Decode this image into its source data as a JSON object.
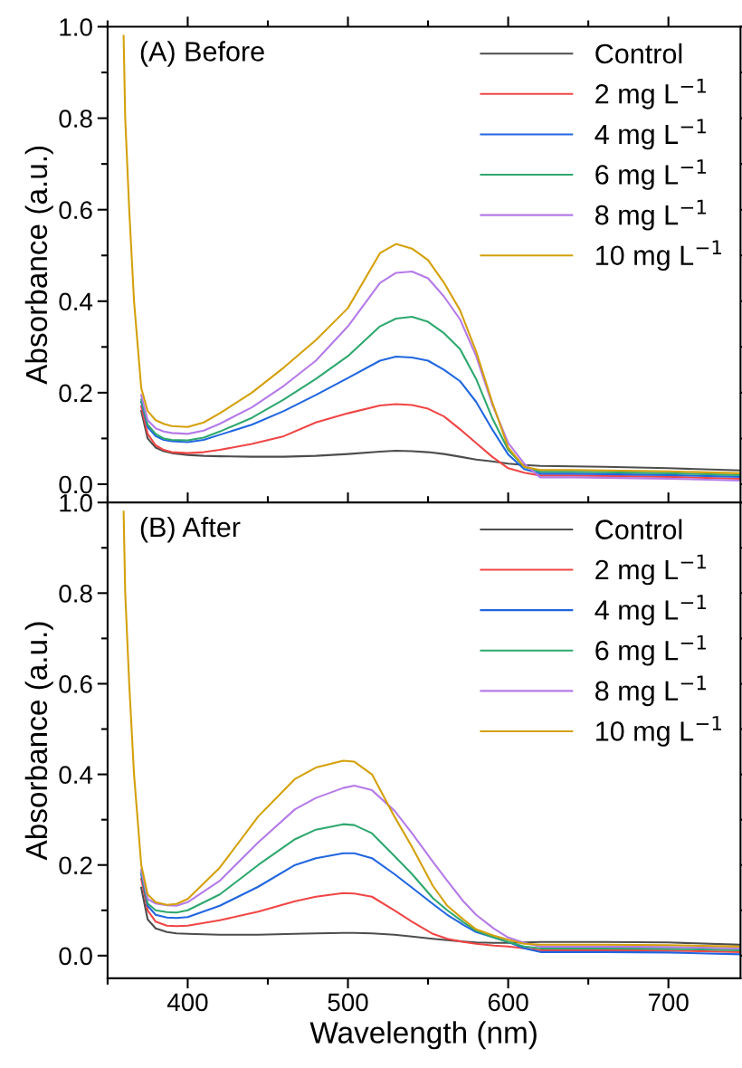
{
  "chart_data": [
    {
      "type": "line",
      "ylabel": "Absorbance (a.u.)",
      "annotations": [
        "(A) Before"
      ],
      "xlim": [
        350,
        745
      ],
      "xticks": [
        400,
        500,
        600,
        700
      ],
      "ylim": [
        -0.04,
        1.0
      ],
      "yticks": [
        {
          "value": 0,
          "label": "0.0"
        },
        {
          "value": 0.2,
          "label": "0.2"
        },
        {
          "value": 0.4,
          "label": "0.4"
        },
        {
          "value": 0.6,
          "label": "0.6"
        },
        {
          "value": 0.8,
          "label": "0.8"
        },
        {
          "value": 1,
          "label": "1.0"
        }
      ],
      "tick_labels": "y",
      "legend": "top right",
      "marker": "none",
      "line_style": "solid",
      "x": [
        360,
        361,
        363.5,
        366.5,
        371,
        375,
        380,
        385,
        390,
        400,
        410,
        420,
        440,
        460,
        480,
        500,
        520,
        530,
        540,
        550,
        560,
        570,
        580,
        590,
        600,
        610,
        620,
        640,
        660,
        700,
        745
      ],
      "series": [
        {
          "name": "Control",
          "color": "#4d4d4d",
          "values": [
            null,
            null,
            null,
            null,
            0.16,
            0.1,
            0.08,
            0.072,
            0.068,
            0.064,
            0.062,
            0.061,
            0.06,
            0.06,
            0.062,
            0.066,
            0.071,
            0.073,
            0.072,
            0.07,
            0.066,
            0.06,
            0.054,
            0.05,
            0.045,
            0.042,
            0.04,
            0.039,
            0.038,
            0.035,
            0.03
          ]
        },
        {
          "name": "2 mg L$^{−1}$",
          "color": "#f04545",
          "values": [
            null,
            null,
            null,
            null,
            0.17,
            0.11,
            0.085,
            0.075,
            0.07,
            0.068,
            0.07,
            0.075,
            0.088,
            0.105,
            0.135,
            0.155,
            0.172,
            0.175,
            0.173,
            0.165,
            0.148,
            0.12,
            0.09,
            0.06,
            0.035,
            0.025,
            0.019,
            0.019,
            0.018,
            0.016,
            0.012
          ]
        },
        {
          "name": "4 mg L$^{−1}$",
          "color": "#2066e0",
          "values": [
            null,
            null,
            null,
            null,
            0.18,
            0.125,
            0.105,
            0.097,
            0.094,
            0.092,
            0.097,
            0.108,
            0.13,
            0.16,
            0.195,
            0.232,
            0.27,
            0.279,
            0.277,
            0.27,
            0.25,
            0.225,
            0.18,
            0.12,
            0.065,
            0.033,
            0.023,
            0.023,
            0.022,
            0.02,
            0.016
          ]
        },
        {
          "name": "6 mg L$^{−1}$",
          "color": "#2ea86e",
          "values": [
            null,
            null,
            null,
            null,
            0.185,
            0.13,
            0.11,
            0.1,
            0.097,
            0.096,
            0.102,
            0.115,
            0.145,
            0.185,
            0.23,
            0.28,
            0.345,
            0.362,
            0.366,
            0.355,
            0.33,
            0.295,
            0.23,
            0.145,
            0.075,
            0.038,
            0.027,
            0.027,
            0.026,
            0.024,
            0.02
          ]
        },
        {
          "name": "8 mg L$^{−1}$",
          "color": "#b57ae8",
          "values": [
            null,
            null,
            null,
            null,
            0.195,
            0.14,
            0.122,
            0.115,
            0.112,
            0.11,
            0.117,
            0.132,
            0.168,
            0.215,
            0.27,
            0.345,
            0.44,
            0.462,
            0.465,
            0.45,
            0.41,
            0.36,
            0.28,
            0.175,
            0.09,
            0.045,
            0.015,
            0.015,
            0.014,
            0.012,
            0.008
          ]
        },
        {
          "name": "10 mg L$^{−1}$",
          "color": "#d4a00a",
          "values": [
            0.98,
            0.8,
            0.6,
            0.4,
            0.21,
            0.16,
            0.14,
            0.132,
            0.127,
            0.125,
            0.135,
            0.155,
            0.2,
            0.255,
            0.315,
            0.385,
            0.505,
            0.525,
            0.515,
            0.49,
            0.44,
            0.38,
            0.29,
            0.18,
            0.08,
            0.038,
            0.031,
            0.031,
            0.03,
            0.028,
            0.024
          ]
        }
      ]
    },
    {
      "type": "line",
      "xlabel": "Wavelength (nm)",
      "ylabel": "Absorbance (a.u.)",
      "annotations": [
        "(B) After"
      ],
      "xlim": [
        350,
        745
      ],
      "xticks": [
        400,
        500,
        600,
        700
      ],
      "ylim": [
        -0.05,
        1.0
      ],
      "yticks": [
        {
          "value": 0,
          "label": "0.0"
        },
        {
          "value": 0.2,
          "label": "0.2"
        },
        {
          "value": 0.4,
          "label": "0.4"
        },
        {
          "value": 0.6,
          "label": "0.6"
        },
        {
          "value": 0.8,
          "label": "0.8"
        },
        {
          "value": 1,
          "label": "1.0"
        }
      ],
      "legend": "top right",
      "marker": "none",
      "line_style": "solid",
      "x": [
        360,
        361,
        363.5,
        366.5,
        371,
        375,
        380,
        387,
        393,
        400,
        420,
        444,
        467,
        480,
        497,
        504,
        515,
        529,
        540,
        553,
        562,
        572,
        580,
        591,
        600,
        610,
        620,
        660,
        700,
        745
      ],
      "series": [
        {
          "name": "Control",
          "color": "#4d4d4d",
          "values": [
            null,
            null,
            null,
            null,
            0.15,
            0.08,
            0.06,
            0.052,
            0.049,
            0.048,
            0.046,
            0.046,
            0.048,
            0.049,
            0.05,
            0.05,
            0.049,
            0.046,
            0.042,
            0.037,
            0.034,
            0.031,
            0.029,
            0.028,
            0.028,
            0.029,
            0.03,
            0.03,
            0.029,
            0.024
          ]
        },
        {
          "name": "2 mg L$^{−1}$",
          "color": "#f04545",
          "values": [
            null,
            null,
            null,
            null,
            0.17,
            0.1,
            0.075,
            0.066,
            0.065,
            0.066,
            0.078,
            0.097,
            0.12,
            0.13,
            0.138,
            0.137,
            0.13,
            0.1,
            0.075,
            0.048,
            0.037,
            0.03,
            0.026,
            0.022,
            0.02,
            0.016,
            0.012,
            0.012,
            0.011,
            0.008
          ]
        },
        {
          "name": "4 mg L$^{−1}$",
          "color": "#2066e0",
          "values": [
            null,
            null,
            null,
            null,
            0.18,
            0.11,
            0.09,
            0.084,
            0.083,
            0.085,
            0.11,
            0.152,
            0.2,
            0.215,
            0.226,
            0.226,
            0.215,
            0.18,
            0.15,
            0.114,
            0.09,
            0.068,
            0.052,
            0.04,
            0.03,
            0.016,
            0.008,
            0.008,
            0.007,
            0.003
          ]
        },
        {
          "name": "6 mg L$^{−1}$",
          "color": "#2ea86e",
          "values": [
            null,
            null,
            null,
            null,
            0.185,
            0.115,
            0.1,
            0.096,
            0.095,
            0.1,
            0.135,
            0.2,
            0.257,
            0.278,
            0.29,
            0.288,
            0.27,
            0.22,
            0.18,
            0.127,
            0.1,
            0.074,
            0.055,
            0.04,
            0.03,
            0.02,
            0.016,
            0.016,
            0.015,
            0.012
          ]
        },
        {
          "name": "8 mg L$^{−1}$",
          "color": "#b57ae8",
          "values": [
            null,
            null,
            null,
            null,
            0.19,
            0.125,
            0.115,
            0.111,
            0.11,
            0.118,
            0.165,
            0.25,
            0.323,
            0.348,
            0.37,
            0.375,
            0.365,
            0.32,
            0.27,
            0.207,
            0.165,
            0.12,
            0.09,
            0.06,
            0.04,
            0.028,
            0.02,
            0.02,
            0.019,
            0.016
          ]
        },
        {
          "name": "10 mg L$^{−1}$",
          "color": "#d4a00a",
          "values": [
            0.98,
            0.8,
            0.6,
            0.4,
            0.2,
            0.135,
            0.118,
            0.112,
            0.114,
            0.125,
            0.194,
            0.307,
            0.39,
            0.415,
            0.43,
            0.428,
            0.4,
            0.307,
            0.24,
            0.154,
            0.11,
            0.08,
            0.058,
            0.044,
            0.035,
            0.026,
            0.024,
            0.024,
            0.023,
            0.02
          ]
        }
      ]
    }
  ]
}
